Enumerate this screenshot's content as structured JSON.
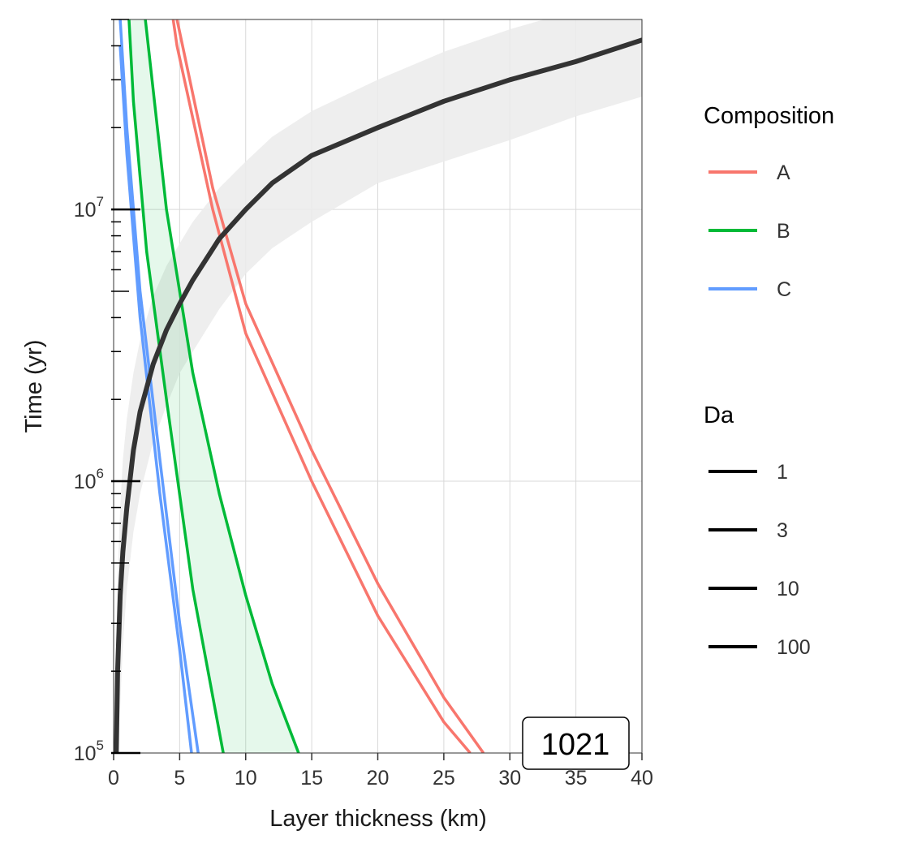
{
  "chart_data": {
    "type": "line",
    "xlabel": "Layer thickness (km)",
    "ylabel": "Time (yr)",
    "xlim": [
      0,
      40
    ],
    "ylim": [
      100000,
      50000000
    ],
    "y_scale": "log",
    "grid": true,
    "x_ticks": [
      0,
      5,
      10,
      15,
      20,
      25,
      30,
      35,
      40
    ],
    "y_ticks": [
      {
        "value": 100000,
        "base": "10",
        "exp": "5"
      },
      {
        "value": 1000000,
        "base": "10",
        "exp": "6"
      },
      {
        "value": 10000000,
        "base": "10",
        "exp": "7"
      }
    ],
    "series": [
      {
        "group": "A",
        "color": "#F8766D",
        "x": [
          3.0,
          4.8,
          7.5,
          10.0,
          15.0,
          20.0,
          25.0,
          28.0
        ],
        "y": [
          200000000,
          50000000,
          12000000,
          4500000,
          1300000,
          420000,
          160000,
          100000
        ]
      },
      {
        "group": "A",
        "color": "#F8766D",
        "x": [
          3.0,
          4.8,
          7.5,
          10.0,
          15.0,
          20.0,
          25.0,
          27.0
        ],
        "y": [
          160000000,
          40000000,
          10000000,
          3500000,
          1000000,
          320000,
          130000,
          100000
        ]
      },
      {
        "group": "B",
        "color": "#00BA38",
        "x": [
          1.3,
          2.4,
          4.0,
          6.0,
          8.0,
          10.0,
          12.0,
          14.0
        ],
        "y": [
          100000000,
          50000000,
          10000000,
          2500000,
          900000,
          380000,
          180000,
          100000
        ]
      },
      {
        "group": "B",
        "color": "#00BA38",
        "x": [
          1.0,
          1.5,
          2.5,
          4.0,
          6.0,
          8.3
        ],
        "y": [
          70000000,
          25000000,
          7000000,
          2000000,
          400000,
          100000
        ]
      },
      {
        "group": "C",
        "color": "#619CFF",
        "x": [
          0.5,
          1.0,
          2.0,
          3.5,
          5.0,
          6.4
        ],
        "y": [
          50000000,
          20000000,
          5000000,
          1200000,
          300000,
          100000
        ]
      },
      {
        "group": "C",
        "color": "#619CFF",
        "x": [
          0.5,
          1.0,
          2.0,
          3.5,
          5.0,
          5.9
        ],
        "y": [
          40000000,
          16000000,
          4000000,
          900000,
          240000,
          100000
        ]
      }
    ],
    "fill_band": {
      "color": "#00BA38",
      "opacity": 0.1,
      "upper_series": 2,
      "lower_series": 3
    },
    "diffusion_curve": {
      "color": "#333333",
      "x": [
        0.2,
        0.3,
        0.5,
        0.7,
        1.0,
        1.5,
        2.0,
        3.0,
        4.0,
        5.0,
        6.0,
        8.0,
        10.0,
        12.0,
        15.0,
        20.0,
        25.0,
        30.0,
        35.0,
        40.0
      ],
      "y": [
        100000,
        200000,
        380000,
        550000,
        800000,
        1300000,
        1800000,
        2700000,
        3600000,
        4500000,
        5500000,
        7800000,
        10000000,
        12500000,
        15800000,
        20000000,
        25000000,
        30000000,
        35000000,
        42000000
      ],
      "band_upper": [
        250000,
        450000,
        800000,
        1200000,
        1700000,
        2500000,
        3300000,
        4800000,
        6200000,
        7500000,
        9000000,
        12000000,
        15000000,
        18500000,
        23000000,
        30000000,
        38000000,
        46000000,
        54000000,
        62000000
      ],
      "band_lower": [
        100000,
        100000,
        150000,
        250000,
        400000,
        650000,
        900000,
        1400000,
        1900000,
        2500000,
        3000000,
        4300000,
        5800000,
        7200000,
        9000000,
        12500000,
        15000000,
        18000000,
        22000000,
        26000000
      ],
      "band_color": "#EBEBEB"
    },
    "legend_composition": {
      "title": "Composition",
      "items": [
        {
          "label": "A",
          "color": "#F8766D"
        },
        {
          "label": "B",
          "color": "#00BA38"
        },
        {
          "label": "C",
          "color": "#619CFF"
        }
      ]
    },
    "legend_da": {
      "title": "Da",
      "items": [
        {
          "label": "1",
          "color": "#000000"
        },
        {
          "label": "3",
          "color": "#000000"
        },
        {
          "label": "10",
          "color": "#000000"
        },
        {
          "label": "100",
          "color": "#000000"
        }
      ]
    },
    "annotation": {
      "text": "1021"
    }
  }
}
